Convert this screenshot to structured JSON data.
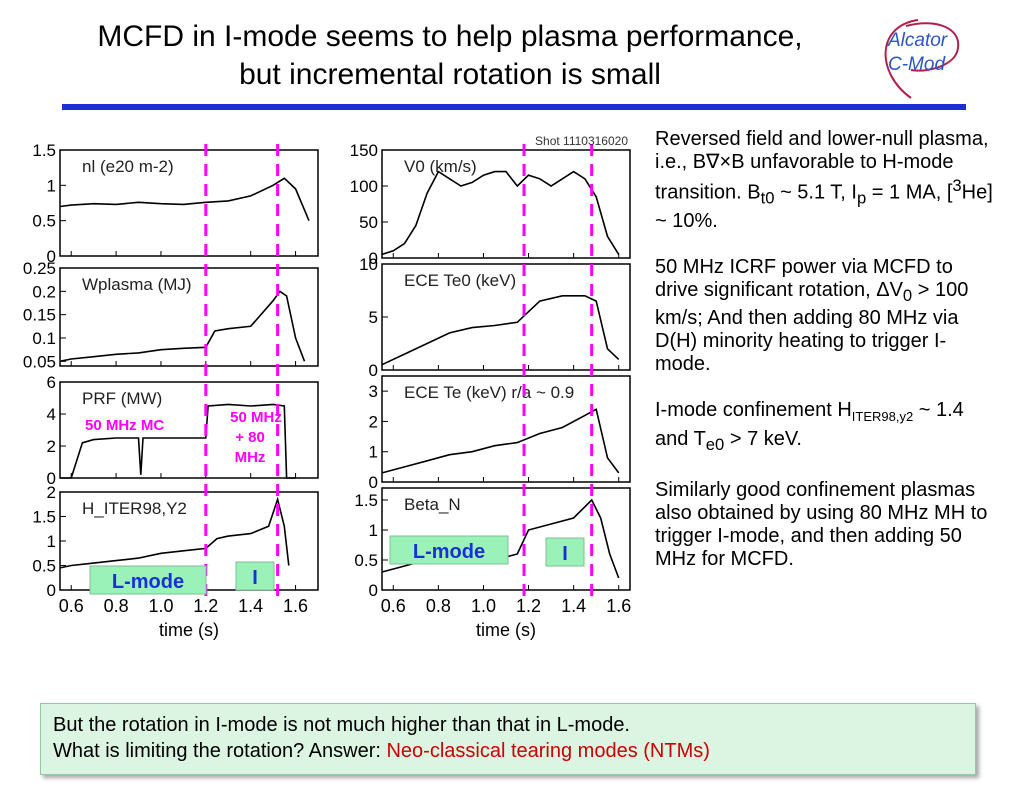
{
  "title": {
    "line1": "MCFD in I-mode seems to help plasma performance,",
    "line2": "but incremental rotation is small"
  },
  "logo": {
    "line1": "Alcator",
    "line2": "C-Mod"
  },
  "colors": {
    "accent_rule": "#1c2fd6",
    "annotation_magenta": "#ff00ff",
    "answer_red": "#cc0000",
    "label_box_green": "#9af2b9",
    "box_bg": "#dcf5e2"
  },
  "bullets": {
    "b1": {
      "t1": "Reversed field and lower-null plasma, i.e., B",
      "t2": "∇×",
      "t3": "B unfavorable to H-mode transition. B",
      "sub1": "t0",
      "t4": " ~ 5.1 T, I",
      "sub2": "p",
      "t5": " = 1 MA, [",
      "sup1": "3",
      "t6": "He] ~ 10%."
    },
    "b2": {
      "t1": "50 MHz ICRF power via MCFD  to drive significant rotation, ΔV",
      "sub1": "0",
      "t2": " > 100 km/s; And then adding 80 MHz via D(H) minority heating to trigger I-mode."
    },
    "b3": {
      "t1": "I-mode confinement H",
      "sub1": "ITER98,y2",
      "t2": " ~ 1.4 and T",
      "sub2": "e0",
      "t3": " > 7 keV."
    },
    "b4": {
      "t1": "Similarly good confinement plasmas also obtained by using 80 MHz MH to trigger I-mode, and then adding 50 MHz for MCFD."
    }
  },
  "bottom": {
    "line1": "But the rotation in I-mode is not much higher than that in L-mode.",
    "line2_prefix": "What is limiting the rotation? Answer: ",
    "line2_answer": "Neo-classical tearing modes (NTMs)"
  },
  "chart_data": [
    {
      "type": "line",
      "panel": "left-column",
      "xlabel": "time (s)",
      "xlim": [
        0.55,
        1.7
      ],
      "xticks": [
        "0.6",
        "0.8",
        "1.0",
        "1.2",
        "1.4",
        "1.6"
      ],
      "dashed_lines_x": [
        1.2,
        1.52
      ],
      "panels": [
        {
          "name": "nl (e20 m-2)",
          "ylim": [
            0,
            1.5
          ],
          "yticks": [
            "1.5",
            "1",
            "0.5",
            "0"
          ],
          "x": [
            0.55,
            0.6,
            0.7,
            0.8,
            0.9,
            1.0,
            1.1,
            1.2,
            1.3,
            1.4,
            1.5,
            1.55,
            1.6,
            1.66
          ],
          "y": [
            0.7,
            0.72,
            0.74,
            0.73,
            0.76,
            0.74,
            0.73,
            0.76,
            0.78,
            0.85,
            1.0,
            1.1,
            0.95,
            0.5
          ]
        },
        {
          "name": "Wplasma (MJ)",
          "ylim": [
            0.04,
            0.25
          ],
          "yticks": [
            "0.25",
            "0.2",
            "0.15",
            "0.1",
            "0.05"
          ],
          "x": [
            0.55,
            0.6,
            0.7,
            0.8,
            0.9,
            1.0,
            1.1,
            1.2,
            1.24,
            1.3,
            1.4,
            1.5,
            1.53,
            1.56,
            1.6,
            1.64
          ],
          "y": [
            0.05,
            0.055,
            0.06,
            0.065,
            0.068,
            0.075,
            0.078,
            0.08,
            0.115,
            0.12,
            0.125,
            0.18,
            0.2,
            0.19,
            0.1,
            0.05
          ]
        },
        {
          "name": "PRF (MW)",
          "ylim": [
            0,
            6
          ],
          "yticks": [
            "6",
            "4",
            "2",
            "0"
          ],
          "annotations": [
            "50 MHz MC",
            "50 MHz + 80 MHz"
          ],
          "x": [
            0.55,
            0.6,
            0.65,
            0.7,
            0.8,
            0.9,
            0.91,
            0.92,
            1.0,
            1.1,
            1.2,
            1.21,
            1.3,
            1.4,
            1.5,
            1.55,
            1.56,
            1.6
          ],
          "y": [
            0,
            0,
            2.2,
            2.4,
            2.5,
            2.5,
            0.2,
            2.5,
            2.5,
            2.5,
            2.5,
            4.5,
            4.6,
            4.5,
            4.6,
            4.5,
            0,
            0
          ]
        },
        {
          "name": "H_ITER98,Y2",
          "ylim": [
            0,
            2
          ],
          "yticks": [
            "2",
            "1.5",
            "1",
            "0.5",
            "0"
          ],
          "label_boxes": [
            "L-mode",
            "I"
          ],
          "x": [
            0.55,
            0.6,
            0.7,
            0.8,
            0.9,
            1.0,
            1.1,
            1.2,
            1.25,
            1.3,
            1.4,
            1.48,
            1.52,
            1.55,
            1.57
          ],
          "y": [
            0.45,
            0.5,
            0.55,
            0.6,
            0.65,
            0.75,
            0.8,
            0.85,
            1.05,
            1.1,
            1.15,
            1.3,
            1.85,
            1.3,
            0.5
          ]
        }
      ]
    },
    {
      "type": "line",
      "panel": "right-column",
      "annotation": "Shot 1110316020",
      "xlabel": "time (s)",
      "xlim": [
        0.55,
        1.65
      ],
      "xticks": [
        "0.6",
        "0.8",
        "1.0",
        "1.2",
        "1.4",
        "1.6"
      ],
      "dashed_lines_x": [
        1.18,
        1.48
      ],
      "panels": [
        {
          "name": "V0 (km/s)",
          "ylim": [
            0,
            150
          ],
          "yticks": [
            "150",
            "100",
            "50",
            "0"
          ],
          "x": [
            0.55,
            0.6,
            0.65,
            0.7,
            0.75,
            0.8,
            0.85,
            0.9,
            0.95,
            1.0,
            1.05,
            1.1,
            1.15,
            1.2,
            1.25,
            1.3,
            1.35,
            1.4,
            1.45,
            1.5,
            1.55,
            1.6
          ],
          "y": [
            5,
            10,
            20,
            45,
            90,
            120,
            110,
            100,
            105,
            115,
            120,
            120,
            100,
            115,
            110,
            100,
            110,
            120,
            110,
            85,
            30,
            5
          ]
        },
        {
          "name": "ECE Te0 (keV)",
          "ylim": [
            0,
            10
          ],
          "yticks": [
            "10",
            "5",
            "0"
          ],
          "x": [
            0.55,
            0.65,
            0.75,
            0.85,
            0.95,
            1.05,
            1.15,
            1.2,
            1.25,
            1.35,
            1.45,
            1.5,
            1.55,
            1.6
          ],
          "y": [
            0.5,
            1.5,
            2.5,
            3.5,
            4.0,
            4.2,
            4.5,
            5.5,
            6.5,
            7.0,
            7.0,
            6.5,
            2.0,
            1.0
          ]
        },
        {
          "name": "ECE Te (keV) r/a ~ 0.9",
          "ylim": [
            0,
            3.5
          ],
          "yticks": [
            "3",
            "2",
            "1",
            "0"
          ],
          "x": [
            0.55,
            0.65,
            0.75,
            0.85,
            0.95,
            1.05,
            1.15,
            1.25,
            1.35,
            1.45,
            1.5,
            1.55,
            1.6
          ],
          "y": [
            0.3,
            0.5,
            0.7,
            0.9,
            1.0,
            1.2,
            1.3,
            1.6,
            1.8,
            2.2,
            2.4,
            0.8,
            0.3
          ]
        },
        {
          "name": "Beta_N",
          "ylim": [
            0,
            1.7
          ],
          "yticks": [
            "1.5",
            "1",
            "0.5",
            "0"
          ],
          "label_boxes": [
            "L-mode",
            "I"
          ],
          "x": [
            0.55,
            0.6,
            0.7,
            0.8,
            0.9,
            1.0,
            1.1,
            1.15,
            1.2,
            1.3,
            1.4,
            1.48,
            1.52,
            1.56,
            1.6
          ],
          "y": [
            0.3,
            0.35,
            0.45,
            0.5,
            0.5,
            0.55,
            0.55,
            0.6,
            1.0,
            1.1,
            1.2,
            1.5,
            1.2,
            0.6,
            0.2
          ]
        }
      ]
    }
  ]
}
